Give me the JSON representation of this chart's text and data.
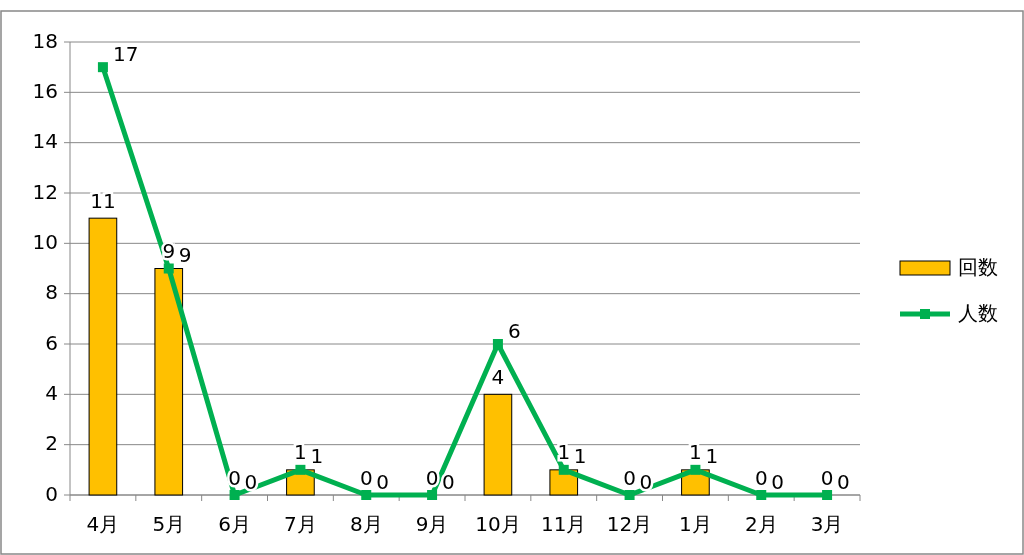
{
  "chart_data": {
    "type": "bar",
    "categories": [
      "4月",
      "5月",
      "6月",
      "7月",
      "8月",
      "9月",
      "10月",
      "11月",
      "12月",
      "1月",
      "2月",
      "3月"
    ],
    "series": [
      {
        "name": "回数",
        "color": "#ffc000",
        "values": [
          11,
          9,
          0,
          1,
          0,
          0,
          4,
          1,
          0,
          1,
          0,
          0
        ]
      },
      {
        "name": "人数",
        "type": "line",
        "color": "#00b050",
        "marker": "square",
        "values": [
          17,
          9,
          0,
          1,
          0,
          0,
          6,
          1,
          0,
          1,
          0,
          0
        ]
      }
    ],
    "ylim": [
      0,
      18
    ],
    "yticks": [
      0,
      2,
      4,
      6,
      8,
      10,
      12,
      14,
      16,
      18
    ],
    "grid": "y",
    "legend": "right",
    "data_labels": true
  }
}
